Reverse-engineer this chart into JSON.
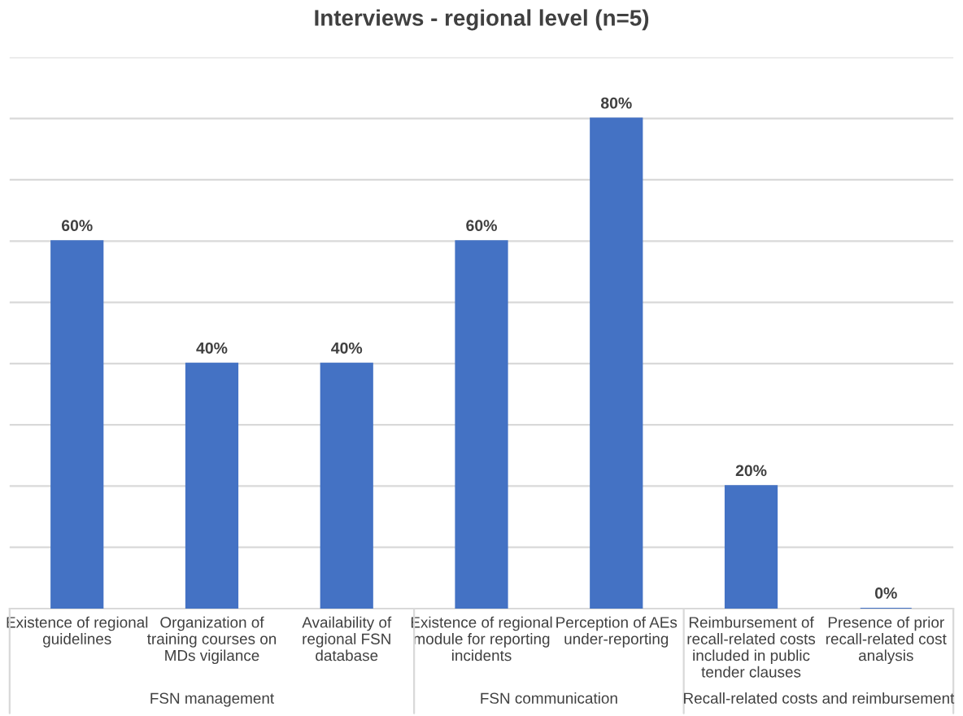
{
  "chart_data": {
    "type": "bar",
    "title": "Interviews - regional level (n=5)",
    "categories": [
      "Existence of regional\nguidelines",
      "Organization of\ntraining courses on\nMDs vigilance",
      "Availability of\nregional FSN\ndatabase",
      "Existence of regional\nmodule for reporting\nincidents",
      "Perception of AEs\nunder-reporting",
      "Reimbursement of\nrecall-related costs\nincluded in public\ntender clauses",
      "Presence of prior\nrecall-related cost\nanalysis"
    ],
    "values": [
      60,
      40,
      40,
      60,
      80,
      20,
      0
    ],
    "value_labels": [
      "60%",
      "40%",
      "40%",
      "60%",
      "80%",
      "20%",
      "0%"
    ],
    "color": "#4472c4",
    "ylim": [
      0,
      90
    ],
    "yticks": [
      {
        "value": 0,
        "label": null
      },
      {
        "value": 10,
        "label": null
      },
      {
        "value": 20,
        "label": null
      },
      {
        "value": 30,
        "label": null
      },
      {
        "value": 40,
        "label": null
      },
      {
        "value": 50,
        "label": null
      },
      {
        "value": 60,
        "label": null
      },
      {
        "value": 70,
        "label": null
      },
      {
        "value": 80,
        "label": null
      },
      {
        "value": 90,
        "label": null
      }
    ],
    "tick_labels": "x",
    "grid": "y",
    "annotations": [
      "FSN management",
      "FSN communication",
      "Recall-related costs and reimbursement"
    ]
  }
}
